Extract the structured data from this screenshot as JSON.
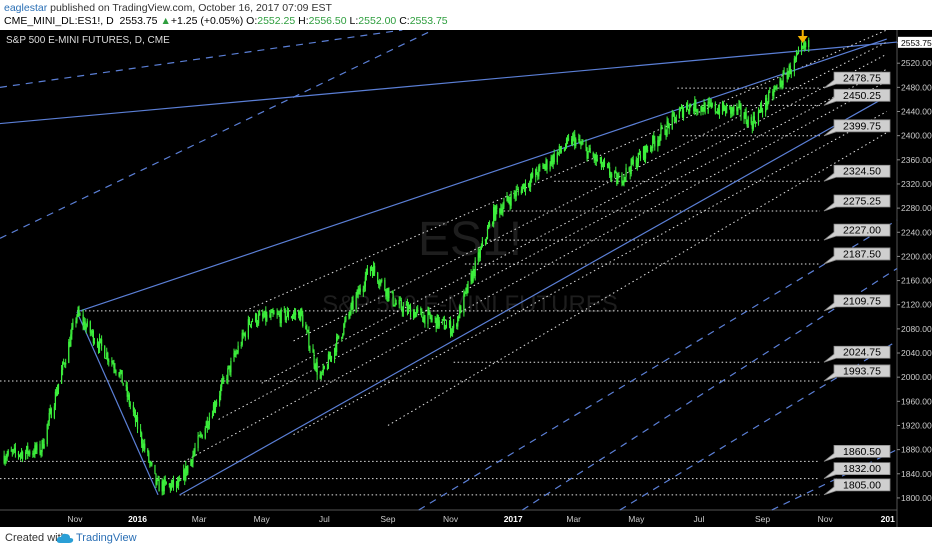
{
  "header": {
    "user": "eaglestar",
    "published_text": "published on TradingView.com, October 16, 2017 07:09 EST",
    "symbol": "CME_MINI_DL:ES1!, D",
    "last": "2553.75",
    "change": "+1.25 (+0.05%)",
    "open_label": "O:",
    "open": "2552.25",
    "high_label": "H:",
    "high": "2556.50",
    "low_label": "L:",
    "low": "2552.00",
    "close_label": "C:",
    "close": "2553.75"
  },
  "footer": {
    "created_with": "Created with",
    "brand": "TradingView"
  },
  "colors": {
    "background": "#000000",
    "candles": "#3df03d",
    "channel": "#5b7fd6",
    "dotted": "#e0e0e0",
    "price_label_bg": "#cfcfcf",
    "marker_arrow": "#f5b400"
  },
  "chart_data": {
    "type": "candlestick",
    "title": "S&P 500 E-MINI FUTURES, D, CME",
    "watermark_symbol": "ES1!",
    "watermark_name": "S&P 500 E-MINI FUTURES",
    "current_price": 2553.75,
    "ylim": [
      1780,
      2575
    ],
    "y_ticks": [
      "1800.00",
      "1840.00",
      "1880.00",
      "1920.00",
      "1960.00",
      "2000.00",
      "2040.00",
      "2080.00",
      "2120.00",
      "2160.00",
      "2200.00",
      "2240.00",
      "2280.00",
      "2320.00",
      "2360.00",
      "2400.00",
      "2440.00",
      "2480.00",
      "2520.00",
      "2553.75"
    ],
    "x_ticks": [
      "Nov",
      "2016",
      "Mar",
      "May",
      "Jul",
      "Sep",
      "Nov",
      "2017",
      "Mar",
      "May",
      "Jul",
      "Sep",
      "Nov",
      "201"
    ],
    "x_tick_dates": [
      "2015-11-01",
      "2016-01-01",
      "2016-03-01",
      "2016-05-01",
      "2016-07-01",
      "2016-09-01",
      "2016-11-01",
      "2017-01-01",
      "2017-03-01",
      "2017-05-01",
      "2017-07-01",
      "2017-09-01",
      "2017-11-01",
      "2018-01-01"
    ],
    "x_range": [
      "2015-08-20",
      "2018-01-10"
    ],
    "price_levels": [
      {
        "label": "2478.75",
        "value": 2478.75,
        "from": "2017-06-10"
      },
      {
        "label": "2450.25",
        "value": 2450.25,
        "from": "2017-06-15"
      },
      {
        "label": "2399.75",
        "value": 2399.75,
        "from": "2017-06-15"
      },
      {
        "label": "2324.50",
        "value": 2324.5,
        "from": "2017-02-10"
      },
      {
        "label": "2275.25",
        "value": 2275.25,
        "from": "2016-12-15"
      },
      {
        "label": "2227.00",
        "value": 2227.0,
        "from": "2016-12-05"
      },
      {
        "label": "2187.50",
        "value": 2187.5,
        "from": "2016-11-15"
      },
      {
        "label": "2109.75",
        "value": 2109.75,
        "from": "2015-11-03"
      },
      {
        "label": "2024.75",
        "value": 2024.75,
        "from": "2016-11-04"
      },
      {
        "label": "1993.75",
        "value": 1993.75,
        "from": "2015-08-20"
      },
      {
        "label": "1860.50",
        "value": 1860.5,
        "from": "2015-08-24"
      },
      {
        "label": "1832.00",
        "value": 1832.0,
        "from": "2015-08-20"
      },
      {
        "label": "1805.00",
        "value": 1805.0,
        "from": "2016-02-11"
      }
    ],
    "key_points": [
      {
        "date": "2015-08-24",
        "close": 1870
      },
      {
        "date": "2015-09-29",
        "close": 1880
      },
      {
        "date": "2015-11-03",
        "close": 2105
      },
      {
        "date": "2015-12-14",
        "close": 2010
      },
      {
        "date": "2016-01-20",
        "close": 1820
      },
      {
        "date": "2016-02-11",
        "close": 1820
      },
      {
        "date": "2016-04-20",
        "close": 2095
      },
      {
        "date": "2016-06-08",
        "close": 2105
      },
      {
        "date": "2016-06-27",
        "close": 1995
      },
      {
        "date": "2016-08-15",
        "close": 2185
      },
      {
        "date": "2016-09-09",
        "close": 2120
      },
      {
        "date": "2016-11-04",
        "close": 2080
      },
      {
        "date": "2016-12-13",
        "close": 2270
      },
      {
        "date": "2017-03-01",
        "close": 2395
      },
      {
        "date": "2017-04-13",
        "close": 2325
      },
      {
        "date": "2017-06-19",
        "close": 2450
      },
      {
        "date": "2017-08-10",
        "close": 2440
      },
      {
        "date": "2017-08-21",
        "close": 2420
      },
      {
        "date": "2017-10-16",
        "close": 2553.75
      }
    ],
    "channel_solid": [
      {
        "from": {
          "date": "2015-11-03",
          "value": 2108
        },
        "to": {
          "date": "2017-12-31",
          "value": 2560
        },
        "kind": "solid"
      },
      {
        "from": {
          "date": "2016-02-11",
          "value": 1805
        },
        "to": {
          "date": "2017-12-31",
          "value": 2465
        },
        "kind": "solid"
      }
    ],
    "channel_lines": [
      {
        "from": {
          "date": "2015-08-20",
          "value": 2420
        },
        "to": {
          "date": "2018-01-10",
          "value": 2555
        },
        "kind": "solid"
      },
      {
        "from": {
          "date": "2015-08-20",
          "value": 2480
        },
        "to": {
          "date": "2016-09-15",
          "value": 2575
        },
        "kind": "dashed"
      },
      {
        "from": {
          "date": "2015-08-20",
          "value": 2230
        },
        "to": {
          "date": "2016-10-15",
          "value": 2575
        },
        "kind": "dashed"
      },
      {
        "from": {
          "date": "2016-02-15",
          "value": 1860
        },
        "to": {
          "date": "2017-12-31",
          "value": 2490
        },
        "kind": "dotted"
      },
      {
        "from": {
          "date": "2016-03-20",
          "value": 1930
        },
        "to": {
          "date": "2017-12-31",
          "value": 2510
        },
        "kind": "dotted"
      },
      {
        "from": {
          "date": "2016-05-01",
          "value": 1990
        },
        "to": {
          "date": "2017-12-31",
          "value": 2535
        },
        "kind": "dotted"
      },
      {
        "from": {
          "date": "2016-06-01",
          "value": 2060
        },
        "to": {
          "date": "2017-12-31",
          "value": 2555
        },
        "kind": "dotted"
      },
      {
        "from": {
          "date": "2016-06-01",
          "value": 1905
        },
        "to": {
          "date": "2017-12-31",
          "value": 2440
        },
        "kind": "dotted"
      },
      {
        "from": {
          "date": "2016-09-01",
          "value": 1920
        },
        "to": {
          "date": "2017-12-31",
          "value": 2405
        },
        "kind": "dotted"
      },
      {
        "from": {
          "date": "2016-04-15",
          "value": 2110
        },
        "to": {
          "date": "2017-12-31",
          "value": 2575
        },
        "kind": "dotted"
      },
      {
        "from": {
          "date": "2016-10-01",
          "value": 1780
        },
        "to": {
          "date": "2018-01-10",
          "value": 2260
        },
        "kind": "dashed"
      },
      {
        "from": {
          "date": "2017-01-10",
          "value": 1780
        },
        "to": {
          "date": "2018-01-10",
          "value": 2180
        },
        "kind": "dashed"
      },
      {
        "from": {
          "date": "2017-04-15",
          "value": 1780
        },
        "to": {
          "date": "2018-01-10",
          "value": 2060
        },
        "kind": "dashed"
      },
      {
        "from": {
          "date": "2017-09-10",
          "value": 1780
        },
        "to": {
          "date": "2018-01-10",
          "value": 1880
        },
        "kind": "dashed"
      },
      {
        "from": {
          "date": "2015-11-03",
          "value": 2108
        },
        "to": {
          "date": "2016-01-21",
          "value": 1805
        },
        "kind": "solid"
      }
    ]
  }
}
